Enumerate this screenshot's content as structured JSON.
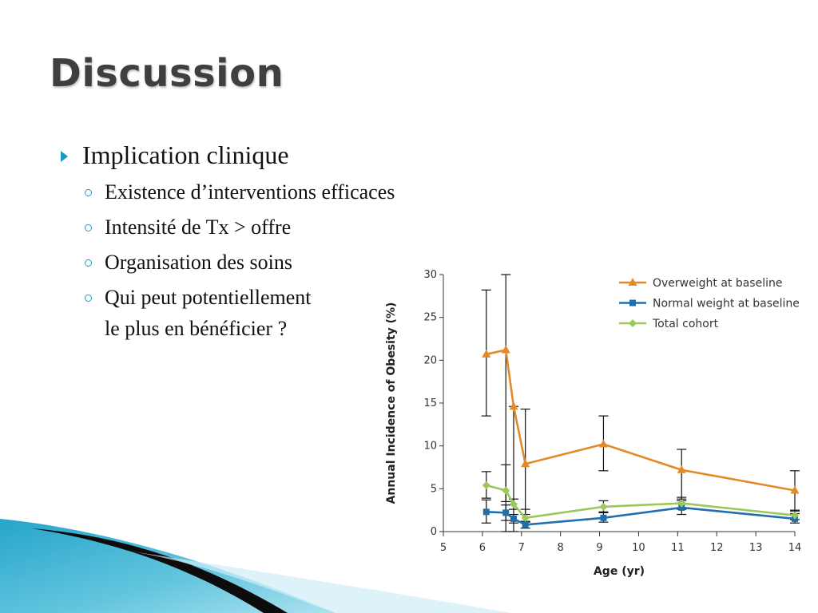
{
  "slide": {
    "title": "Discussion",
    "bullet": "Implication clinique",
    "subbullets": [
      "Existence d’interventions efficaces",
      "Intensité de Tx > offre",
      "Organisation des soins",
      "Qui peut potentiellement",
      "le plus en bénéficier ?"
    ],
    "accent_color": "#1a9ac2"
  },
  "chart_data": {
    "type": "line",
    "xlabel": "Age (yr)",
    "ylabel": "Annual Incidence of Obesity (%)",
    "xlim": [
      5,
      14
    ],
    "ylim": [
      0,
      30
    ],
    "xticks": [
      5,
      6,
      7,
      8,
      9,
      10,
      11,
      12,
      13,
      14
    ],
    "yticks": [
      0,
      5,
      10,
      15,
      20,
      25,
      30
    ],
    "legend_position": "top-right",
    "series": [
      {
        "name": "Overweight at baseline",
        "color": "#e28a27",
        "marker": "triangle",
        "x": [
          6.1,
          6.6,
          6.8,
          7.1,
          9.1,
          11.1,
          14.0
        ],
        "y": [
          20.7,
          21.2,
          14.6,
          7.9,
          10.2,
          7.2,
          4.8
        ],
        "err_low": [
          13.5,
          0,
          0,
          2.0,
          7.1,
          3.8,
          2.4
        ],
        "err_high": [
          28.2,
          30,
          14.6,
          14.3,
          13.5,
          9.6,
          7.1
        ]
      },
      {
        "name": "Normal weight at baseline",
        "color": "#1f6fad",
        "marker": "square",
        "x": [
          6.1,
          6.6,
          6.8,
          7.1,
          9.1,
          11.1,
          14.0
        ],
        "y": [
          2.3,
          2.2,
          1.5,
          0.8,
          1.6,
          2.8,
          1.5
        ],
        "err_low": [
          1.0,
          1.3,
          1.0,
          0.4,
          1.1,
          2.0,
          1.0
        ],
        "err_high": [
          3.7,
          3.1,
          2.0,
          1.2,
          2.2,
          3.6,
          2.1
        ]
      },
      {
        "name": "Total cohort",
        "color": "#9cc75a",
        "marker": "diamond",
        "x": [
          6.1,
          6.6,
          6.8,
          7.1,
          9.1,
          11.1,
          14.0
        ],
        "y": [
          5.4,
          4.8,
          3.2,
          1.6,
          2.9,
          3.3,
          1.9
        ],
        "err_low": [
          3.9,
          3.5,
          2.6,
          1.1,
          2.3,
          2.6,
          1.4
        ],
        "err_high": [
          7.0,
          7.8,
          3.8,
          2.6,
          3.6,
          4.0,
          2.5
        ]
      }
    ]
  }
}
